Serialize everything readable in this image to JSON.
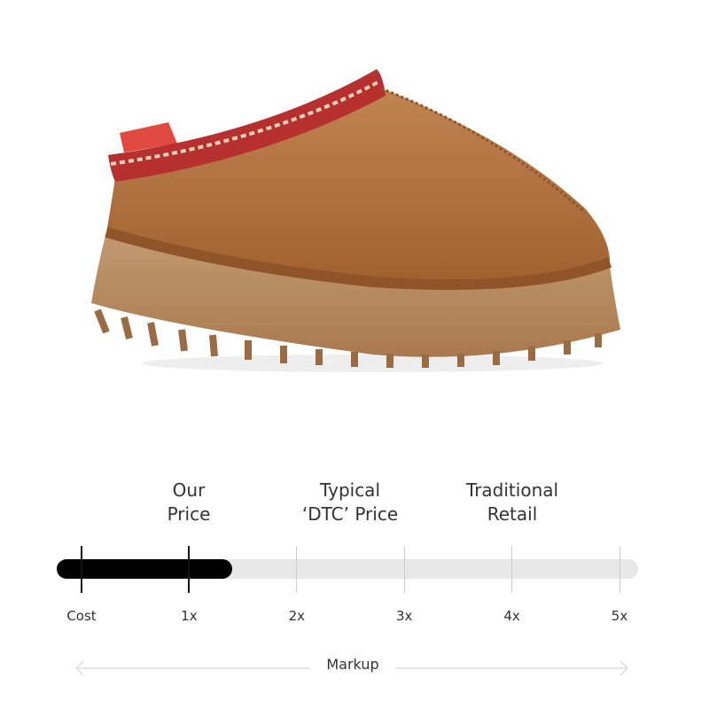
{
  "product_image": {
    "subject": "tan suede platform slipper with embroidered collar",
    "colors": {
      "suede": "#b0713f",
      "sole": "#b98c63",
      "trim": "#b5302f"
    }
  },
  "markup_scale": {
    "headers": [
      {
        "line1": "Our",
        "line2": "Price",
        "at": "1x"
      },
      {
        "line1": "Typical",
        "line2": "‘DTC’ Price",
        "at": "2x-3x"
      },
      {
        "line1": "Traditional",
        "line2": "Retail",
        "at": "4x-5x"
      }
    ],
    "ticks": [
      "Cost",
      "1x",
      "2x",
      "3x",
      "4x",
      "5x"
    ],
    "our_price_fill_markup": 1.4,
    "axis_label": "Markup",
    "colors": {
      "fill": "#000000",
      "track": "#e8e8e8"
    }
  }
}
